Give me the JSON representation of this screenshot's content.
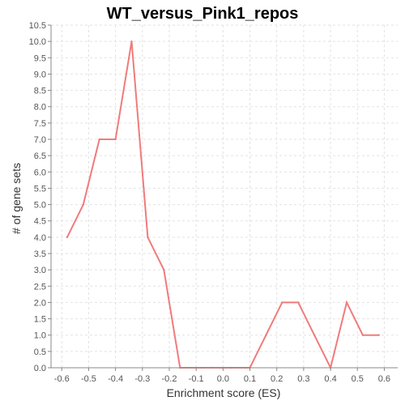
{
  "chart_data": {
    "type": "line",
    "title": "WT_versus_Pink1_repos",
    "xlabel": "Enrichment score (ES)",
    "ylabel": "# of gene sets",
    "xlim": [
      -0.64,
      0.65
    ],
    "ylim": [
      0,
      10.5
    ],
    "xticks": [
      -0.6,
      -0.5,
      -0.4,
      -0.3,
      -0.2,
      -0.1,
      0.0,
      0.1,
      0.2,
      0.3,
      0.4,
      0.5,
      0.6
    ],
    "xtick_labels": [
      "-0.6",
      "-0.5",
      "-0.4",
      "-0.3",
      "-0.2",
      "-0.1",
      "0.0",
      "0.1",
      "0.2",
      "0.3",
      "0.4",
      "0.5",
      "0.6"
    ],
    "yticks": [
      0,
      0.5,
      1,
      1.5,
      2,
      2.5,
      3,
      3.5,
      4,
      4.5,
      5,
      5.5,
      6,
      6.5,
      7,
      7.5,
      8,
      8.5,
      9,
      9.5,
      10,
      10.5
    ],
    "ytick_labels": [
      "0.0",
      "0.5",
      "1.0",
      "1.5",
      "2.0",
      "2.5",
      "3.0",
      "3.5",
      "4.0",
      "4.5",
      "5.0",
      "5.5",
      "6.0",
      "6.5",
      "7.0",
      "7.5",
      "8.0",
      "8.5",
      "9.0",
      "9.5",
      "10.0",
      "10.5"
    ],
    "grid": true,
    "series": [
      {
        "color": "#f07b7b",
        "x": [
          -0.58,
          -0.52,
          -0.46,
          -0.4,
          -0.34,
          -0.28,
          -0.22,
          -0.16,
          -0.1,
          -0.04,
          0.03,
          0.1,
          0.16,
          0.22,
          0.28,
          0.34,
          0.4,
          0.46,
          0.52,
          0.58
        ],
        "y": [
          4,
          5,
          7,
          7,
          10,
          4,
          3,
          0,
          0,
          0,
          0,
          0,
          1,
          2,
          2,
          1,
          0,
          2,
          1,
          1
        ]
      }
    ]
  }
}
